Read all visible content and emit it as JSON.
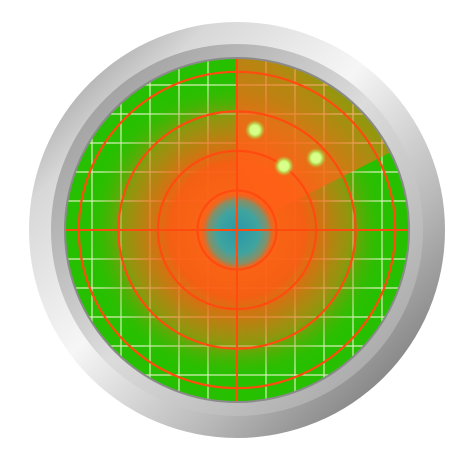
{
  "radar": {
    "icon": "radar-icon",
    "colors": {
      "background": "#ffffff",
      "bezel_light": "#f2f2f2",
      "bezel_mid": "#b9b9b9",
      "bezel_dark": "#6c6c6c",
      "screen_green": "#27c000",
      "grid_line": "#d8f0b8",
      "ring_orange": "#ff4a10",
      "heat_core": "#ff5a1a",
      "center_teal": "#3aa3a6",
      "blip_fill": "#d9ff8a",
      "blip_glow": "#a6ff5a"
    },
    "ring_count": 4,
    "blip_count": 3
  }
}
